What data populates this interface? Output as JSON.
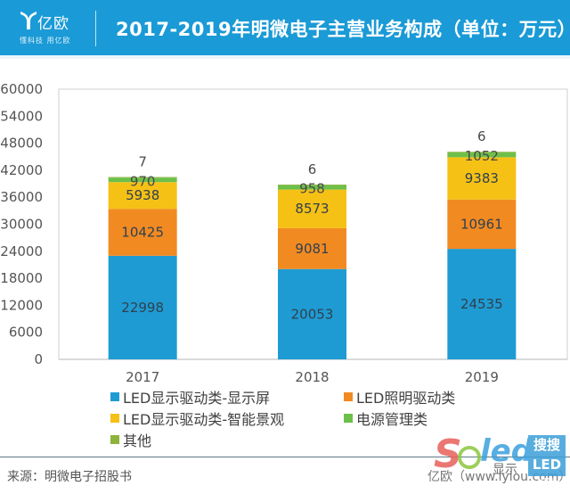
{
  "header": {
    "logo_name": "亿欧",
    "logo_slogan": "懂科技 用亿欧",
    "title": "2017-2019年明微电子主营业务构成（单位：万元）",
    "background_color": "#1a9ad6"
  },
  "chart_data": {
    "type": "bar",
    "stacked": true,
    "title": "2017-2019年明微电子主营业务构成（单位：万元）",
    "xlabel": "",
    "ylabel": "",
    "categories": [
      "2017",
      "2018",
      "2019"
    ],
    "ylim": [
      0,
      60000
    ],
    "yticks": [
      0,
      6000,
      12000,
      18000,
      24000,
      30000,
      36000,
      42000,
      48000,
      54000,
      60000
    ],
    "ytick_labels": [
      "0",
      "6000",
      "12000",
      "18000",
      "24000",
      "30000",
      "36000",
      "42000",
      "48000",
      "54000",
      "60000"
    ],
    "grid": false,
    "legend_position": "bottom",
    "series": [
      {
        "name": "LED显示驱动类-显示屏",
        "color": "#1f9bd3",
        "values": [
          22998,
          20053,
          24535
        ]
      },
      {
        "name": "LED照明驱动类",
        "color": "#f28a22",
        "values": [
          10425,
          9081,
          10961
        ]
      },
      {
        "name": "LED显示驱动类-智能景观",
        "color": "#f6c115",
        "values": [
          5938,
          8573,
          9383
        ]
      },
      {
        "name": "电源管理类",
        "color": "#6cc04a",
        "values": [
          970,
          958,
          1052
        ]
      },
      {
        "name": "其他",
        "color": "#8db33a",
        "values": [
          7,
          6,
          6
        ]
      }
    ]
  },
  "legend": {
    "items": [
      {
        "label": "LED显示驱动类-显示屏",
        "color": "#1f9bd3"
      },
      {
        "label": "LED照明驱动类",
        "color": "#f28a22"
      },
      {
        "label": "LED显示驱动类-智能景观",
        "color": "#f6c115"
      },
      {
        "label": "电源管理类",
        "color": "#6cc04a"
      },
      {
        "label": "其他",
        "color": "#8db33a"
      }
    ]
  },
  "footer": {
    "source": "来源：明微电子招股书",
    "credit": "亿欧（www.iyiou.com）"
  },
  "watermark": {
    "brand": "soled",
    "box_line1": "搜搜",
    "box_line2": "LED网",
    "overlay_text": "显示"
  }
}
